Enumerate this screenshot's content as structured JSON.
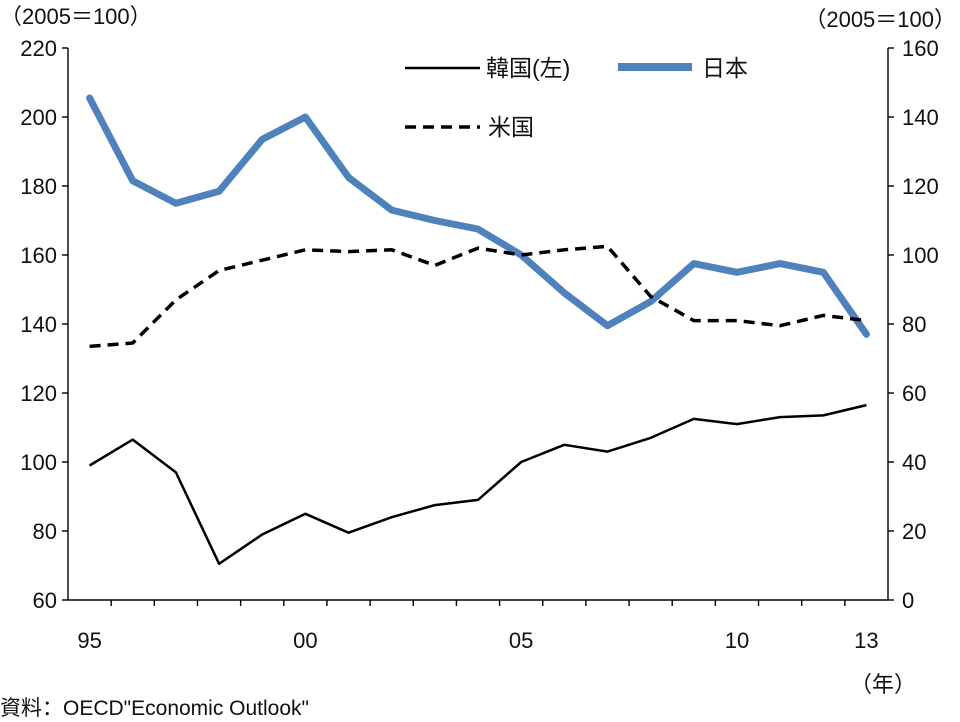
{
  "chart_data": {
    "type": "line",
    "left_unit": "（2005＝100）",
    "right_unit": "（2005＝100）",
    "x": [
      1995,
      1996,
      1997,
      1998,
      1999,
      2000,
      2001,
      2002,
      2003,
      2004,
      2005,
      2006,
      2007,
      2008,
      2009,
      2010,
      2011,
      2012,
      2013
    ],
    "x_tick_labels": [
      {
        "x": 1995,
        "label": "95"
      },
      {
        "x": 2000,
        "label": "00"
      },
      {
        "x": 2005,
        "label": "05"
      },
      {
        "x": 2010,
        "label": "10"
      },
      {
        "x": 2013,
        "label": "13"
      }
    ],
    "x_unit": "（年）",
    "y_left": {
      "range": [
        60,
        220
      ],
      "ticks": [
        60,
        80,
        100,
        120,
        140,
        160,
        180,
        200,
        220
      ]
    },
    "y_right": {
      "range": [
        0,
        160
      ],
      "ticks": [
        0,
        20,
        40,
        60,
        80,
        100,
        120,
        140,
        160
      ]
    },
    "series": [
      {
        "name": "韓国(左)",
        "axis": "left",
        "line_style": "solid",
        "color": "#000000",
        "values": [
          99,
          106.5,
          97,
          70.5,
          79,
          85,
          79.5,
          84,
          87.5,
          89,
          100,
          105,
          103,
          107,
          112.5,
          111,
          113,
          113.5,
          116.5
        ]
      },
      {
        "name": "日本",
        "axis": "right",
        "line_style": "solid",
        "color": "#4F81BD",
        "values": [
          145.5,
          121.5,
          115,
          118.5,
          133.5,
          140,
          122.5,
          113,
          110,
          107.5,
          100,
          89,
          79.5,
          86.5,
          97.5,
          95,
          97.5,
          95,
          77
        ]
      },
      {
        "name": "米国",
        "axis": "right",
        "line_style": "dashed",
        "color": "#000000",
        "values": [
          73.5,
          74.5,
          87,
          95.5,
          98.5,
          101.5,
          101,
          101.5,
          97,
          102,
          100,
          101.5,
          102.5,
          88,
          81,
          81,
          79.5,
          82.5,
          81
        ]
      }
    ],
    "grid": false,
    "legend": "top-center"
  },
  "source": "資料：OECD\"Economic Outlook\""
}
